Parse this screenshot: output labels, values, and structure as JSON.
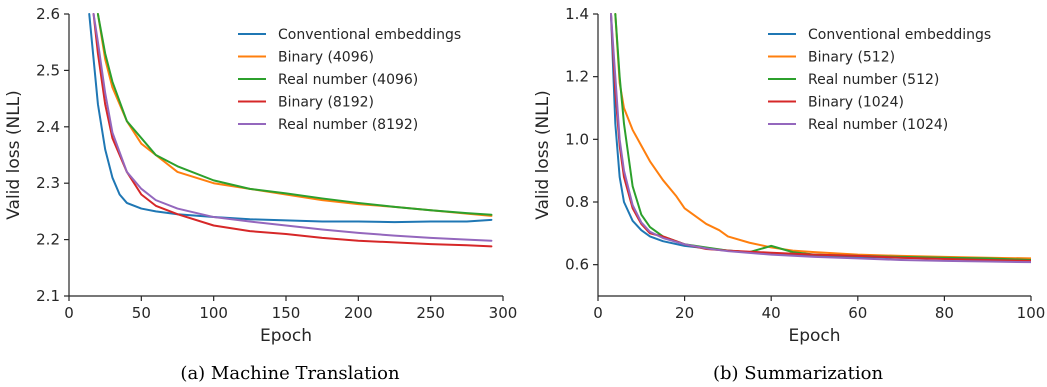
{
  "chart_data": [
    {
      "type": "line",
      "caption": "(a) Machine Translation",
      "xlabel": "Epoch",
      "ylabel": "Valid loss (NLL)",
      "xlim": [
        0,
        300
      ],
      "ylim": [
        2.1,
        2.6
      ],
      "xticks": [
        0,
        50,
        100,
        150,
        200,
        250,
        300
      ],
      "yticks": [
        2.1,
        2.2,
        2.3,
        2.4,
        2.5,
        2.6
      ],
      "grid": false,
      "legend_position": "top-right",
      "series": [
        {
          "name": "Conventional embeddings",
          "color": "#1f77b4",
          "x": [
            14,
            17,
            20,
            25,
            30,
            35,
            40,
            50,
            60,
            75,
            100,
            125,
            150,
            175,
            200,
            225,
            250,
            275,
            292
          ],
          "y": [
            2.6,
            2.52,
            2.44,
            2.36,
            2.31,
            2.28,
            2.265,
            2.255,
            2.25,
            2.245,
            2.24,
            2.236,
            2.234,
            2.232,
            2.232,
            2.231,
            2.232,
            2.232,
            2.235
          ]
        },
        {
          "name": "Binary (4096)",
          "color": "#ff7f0e",
          "x": [
            20,
            25,
            30,
            40,
            50,
            60,
            75,
            100,
            125,
            150,
            175,
            200,
            225,
            250,
            275,
            292
          ],
          "y": [
            2.6,
            2.52,
            2.47,
            2.41,
            2.37,
            2.35,
            2.32,
            2.3,
            2.29,
            2.28,
            2.27,
            2.263,
            2.258,
            2.252,
            2.246,
            2.242
          ]
        },
        {
          "name": "Real number (4096)",
          "color": "#2ca02c",
          "x": [
            20,
            25,
            30,
            40,
            50,
            60,
            75,
            100,
            125,
            150,
            175,
            200,
            225,
            250,
            275,
            292
          ],
          "y": [
            2.6,
            2.53,
            2.48,
            2.41,
            2.38,
            2.35,
            2.33,
            2.305,
            2.29,
            2.282,
            2.273,
            2.265,
            2.258,
            2.252,
            2.247,
            2.244
          ]
        },
        {
          "name": "Binary (8192)",
          "color": "#d62728",
          "x": [
            17,
            20,
            25,
            30,
            40,
            50,
            60,
            75,
            100,
            125,
            150,
            175,
            200,
            225,
            250,
            275,
            292
          ],
          "y": [
            2.6,
            2.53,
            2.44,
            2.38,
            2.32,
            2.28,
            2.26,
            2.245,
            2.225,
            2.215,
            2.21,
            2.203,
            2.198,
            2.195,
            2.192,
            2.19,
            2.188
          ]
        },
        {
          "name": "Real number (8192)",
          "color": "#9467bd",
          "x": [
            17,
            20,
            25,
            30,
            40,
            50,
            60,
            75,
            100,
            125,
            150,
            175,
            200,
            225,
            250,
            275,
            292
          ],
          "y": [
            2.6,
            2.55,
            2.46,
            2.39,
            2.32,
            2.29,
            2.27,
            2.255,
            2.24,
            2.232,
            2.225,
            2.218,
            2.212,
            2.207,
            2.203,
            2.2,
            2.198
          ]
        }
      ]
    },
    {
      "type": "line",
      "caption": "(b) Summarization",
      "xlabel": "Epoch",
      "ylabel": "Valid loss (NLL)",
      "xlim": [
        0,
        100
      ],
      "ylim": [
        0.5,
        1.4
      ],
      "xticks": [
        0,
        20,
        40,
        60,
        80,
        100
      ],
      "yticks": [
        0.6,
        0.8,
        1.0,
        1.2,
        1.4
      ],
      "grid": false,
      "legend_position": "top-right",
      "series": [
        {
          "name": "Conventional embeddings",
          "color": "#1f77b4",
          "x": [
            3,
            4,
            5,
            6,
            8,
            10,
            12,
            15,
            20,
            30,
            40,
            50,
            60,
            70,
            80,
            90,
            100
          ],
          "y": [
            1.4,
            1.05,
            0.88,
            0.8,
            0.74,
            0.71,
            0.69,
            0.675,
            0.66,
            0.645,
            0.635,
            0.63,
            0.625,
            0.622,
            0.62,
            0.617,
            0.615
          ]
        },
        {
          "name": "Binary (512)",
          "color": "#ff7f0e",
          "x": [
            4,
            5,
            6,
            8,
            10,
            12,
            15,
            18,
            20,
            22,
            25,
            28,
            30,
            35,
            40,
            45,
            50,
            60,
            70,
            80,
            90,
            100
          ],
          "y": [
            1.4,
            1.18,
            1.1,
            1.03,
            0.98,
            0.93,
            0.87,
            0.82,
            0.78,
            0.76,
            0.73,
            0.71,
            0.69,
            0.67,
            0.655,
            0.645,
            0.64,
            0.632,
            0.628,
            0.625,
            0.622,
            0.62
          ]
        },
        {
          "name": "Real number (512)",
          "color": "#2ca02c",
          "x": [
            4,
            5,
            6,
            8,
            10,
            12,
            15,
            20,
            25,
            30,
            35,
            40,
            45,
            50,
            60,
            70,
            80,
            90,
            100
          ],
          "y": [
            1.4,
            1.2,
            1.05,
            0.85,
            0.76,
            0.72,
            0.69,
            0.665,
            0.655,
            0.645,
            0.64,
            0.66,
            0.64,
            0.632,
            0.628,
            0.625,
            0.622,
            0.62,
            0.615
          ]
        },
        {
          "name": "Binary (1024)",
          "color": "#d62728",
          "x": [
            3,
            4,
            5,
            6,
            8,
            10,
            12,
            15,
            20,
            25,
            30,
            40,
            50,
            60,
            70,
            80,
            90,
            100
          ],
          "y": [
            1.4,
            1.15,
            0.98,
            0.88,
            0.78,
            0.73,
            0.7,
            0.69,
            0.665,
            0.65,
            0.645,
            0.638,
            0.632,
            0.628,
            0.622,
            0.618,
            0.615,
            0.612
          ]
        },
        {
          "name": "Real number (1024)",
          "color": "#9467bd",
          "x": [
            3,
            4,
            5,
            6,
            8,
            10,
            12,
            15,
            20,
            25,
            30,
            40,
            50,
            60,
            70,
            80,
            90,
            100
          ],
          "y": [
            1.4,
            1.2,
            1.0,
            0.9,
            0.79,
            0.735,
            0.705,
            0.685,
            0.665,
            0.652,
            0.643,
            0.632,
            0.625,
            0.62,
            0.615,
            0.612,
            0.61,
            0.608
          ]
        }
      ]
    }
  ]
}
